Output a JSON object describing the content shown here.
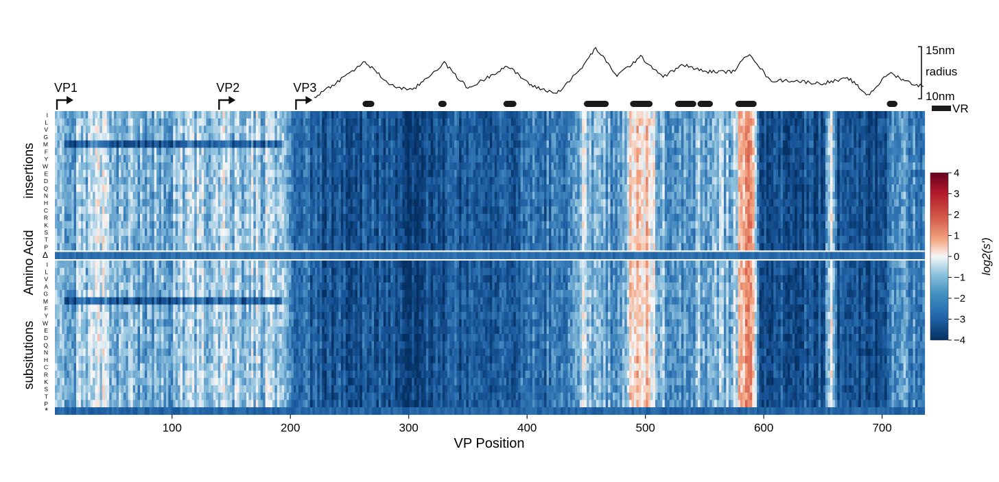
{
  "chart_data": {
    "type": "heatmap",
    "xlabel": "VP Position",
    "ylabel": "Amino Acid",
    "xlim": [
      1,
      735
    ],
    "xticks": [
      100,
      200,
      300,
      400,
      500,
      600,
      700
    ],
    "xtick_labels": [
      "100",
      "200",
      "300",
      "400",
      "500",
      "600",
      "700"
    ],
    "panels": [
      {
        "label": "insertions",
        "rows": [
          "I",
          "L",
          "V",
          "G",
          "M",
          "F",
          "Y",
          "W",
          "E",
          "D",
          "Q",
          "N",
          "H",
          "C",
          "R",
          "K",
          "S",
          "T",
          "P"
        ]
      },
      {
        "label": "Δ",
        "rows": [
          "Δ"
        ]
      },
      {
        "label": "subsitutions",
        "rows": [
          "I",
          "L",
          "V",
          "A",
          "G",
          "M",
          "F",
          "Y",
          "W",
          "E",
          "D",
          "Q",
          "N",
          "H",
          "C",
          "R",
          "K",
          "S",
          "T",
          "P",
          "*"
        ]
      }
    ],
    "start_markers": [
      {
        "label": "VP1",
        "position": 1
      },
      {
        "label": "VP2",
        "position": 138
      },
      {
        "label": "VP3",
        "position": 203
      }
    ],
    "colorbar": {
      "label": "log2(s')",
      "range": [
        -4,
        4
      ],
      "ticks": [
        4,
        3,
        2,
        1,
        0,
        -1,
        -2,
        -3,
        -4
      ],
      "tick_labels": [
        "4",
        "3",
        "2",
        "1",
        "0",
        "−1",
        "−2",
        "−3",
        "−4"
      ],
      "colors": {
        "low": "#08306b",
        "mid": "#f7f7f7",
        "high": "#a50f15"
      }
    },
    "radius_trace": {
      "scale_labels": [
        "15nm",
        "radius",
        "10nm"
      ],
      "range_nm": [
        10,
        15
      ],
      "x_range": [
        220,
        735
      ],
      "points": [
        [
          220,
          10.0
        ],
        [
          240,
          11.6
        ],
        [
          263,
          13.6
        ],
        [
          285,
          11.2
        ],
        [
          303,
          10.7
        ],
        [
          330,
          13.5
        ],
        [
          350,
          10.9
        ],
        [
          365,
          11.9
        ],
        [
          383,
          13.2
        ],
        [
          405,
          11.1
        ],
        [
          425,
          10.4
        ],
        [
          445,
          12.8
        ],
        [
          458,
          15.0
        ],
        [
          476,
          12.2
        ],
        [
          496,
          14.1
        ],
        [
          515,
          12.1
        ],
        [
          532,
          13.3
        ],
        [
          550,
          12.6
        ],
        [
          574,
          12.6
        ],
        [
          588,
          14.5
        ],
        [
          605,
          11.7
        ],
        [
          625,
          11.7
        ],
        [
          648,
          11.4
        ],
        [
          672,
          11.9
        ],
        [
          688,
          10.2
        ],
        [
          706,
          12.5
        ],
        [
          725,
          11.4
        ],
        [
          735,
          11.1
        ]
      ]
    },
    "variable_regions": {
      "label": "VR",
      "ranges": [
        [
          261,
          271
        ],
        [
          325,
          332
        ],
        [
          380,
          391
        ],
        [
          448,
          469
        ],
        [
          487,
          506
        ],
        [
          525,
          543
        ],
        [
          544,
          557
        ],
        [
          576,
          594
        ],
        [
          704,
          713
        ]
      ]
    },
    "heatmap_profile": {
      "positions": [
        1,
        30,
        36,
        42,
        50,
        100,
        130,
        140,
        150,
        190,
        200,
        225,
        265,
        300,
        330,
        350,
        440,
        446,
        460,
        480,
        487,
        500,
        506,
        520,
        540,
        575,
        582,
        592,
        596,
        620,
        650,
        656,
        662,
        700,
        712,
        735
      ],
      "median_log2": [
        -1.2,
        -1.1,
        -0.2,
        -0.4,
        -1.3,
        -1.2,
        -0.8,
        -0.4,
        -0.9,
        -0.9,
        -2.3,
        -3.0,
        -3.0,
        -3.4,
        -3.0,
        -3.1,
        -2.0,
        -0.4,
        -1.2,
        -1.9,
        0.4,
        0.7,
        -0.4,
        -1.8,
        -1.4,
        -1.0,
        1.0,
        0.6,
        -3.0,
        -3.1,
        -3.0,
        0.2,
        -3.1,
        -3.3,
        -1.6,
        -1.9
      ]
    }
  }
}
